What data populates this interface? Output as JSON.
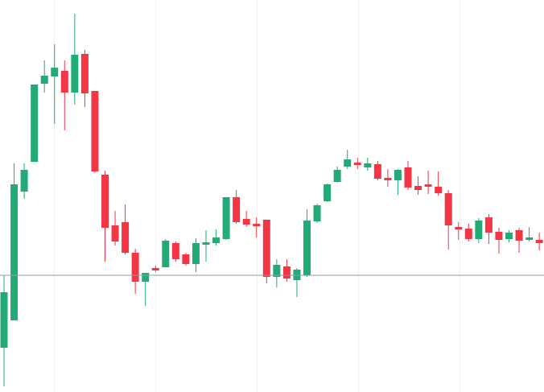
{
  "chart_data": {
    "type": "candlestick",
    "up_color": "#22ab76",
    "down_color": "#f23645",
    "ylim": [
      0,
      487
    ],
    "price_line": 145,
    "open": [
      55,
      89,
      249,
      286,
      383,
      392,
      399,
      372,
      420,
      374,
      270,
      207,
      211,
      173,
      137,
      154,
      155,
      185,
      171,
      159,
      183,
      185,
      190,
      242,
      215,
      209,
      214,
      143,
      156,
      139,
      145,
      212,
      237,
      261,
      280,
      285,
      279,
      283,
      266,
      263,
      279,
      256,
      258,
      255,
      247,
      205,
      203,
      190,
      217,
      199,
      190,
      201,
      189,
      189
    ],
    "high": [
      145,
      284,
      284,
      382,
      412,
      432,
      412,
      470,
      425,
      374,
      275,
      225,
      233,
      178,
      148,
      157,
      190,
      187,
      173,
      191,
      201,
      202,
      242,
      251,
      225,
      217,
      214,
      165,
      165,
      154,
      227,
      234,
      259,
      280,
      301,
      291,
      291,
      287,
      277,
      277,
      287,
      268,
      275,
      274,
      251,
      211,
      209,
      216,
      221,
      204,
      201,
      204,
      205,
      198
    ],
    "low": [
      7,
      89,
      240,
      286,
      372,
      333,
      325,
      357,
      354,
      272,
      162,
      182,
      171,
      122,
      107,
      149,
      155,
      162,
      157,
      149,
      162,
      182,
      189,
      209,
      205,
      192,
      135,
      130,
      137,
      118,
      143,
      210,
      236,
      260,
      277,
      277,
      275,
      263,
      255,
      245,
      251,
      245,
      246,
      244,
      177,
      189,
      187,
      185,
      184,
      172,
      186,
      173,
      187,
      176
    ],
    "close": [
      124,
      258,
      276,
      382,
      393,
      403,
      372,
      419,
      371,
      274,
      204,
      187,
      173,
      137,
      148,
      151,
      188,
      165,
      159,
      185,
      186,
      192,
      242,
      211,
      208,
      206,
      143,
      158,
      141,
      152,
      213,
      232,
      258,
      276,
      289,
      282,
      284,
      265,
      263,
      276,
      254,
      251,
      255,
      247,
      207,
      202,
      190,
      213,
      198,
      189,
      198,
      188,
      192,
      185
    ]
  }
}
